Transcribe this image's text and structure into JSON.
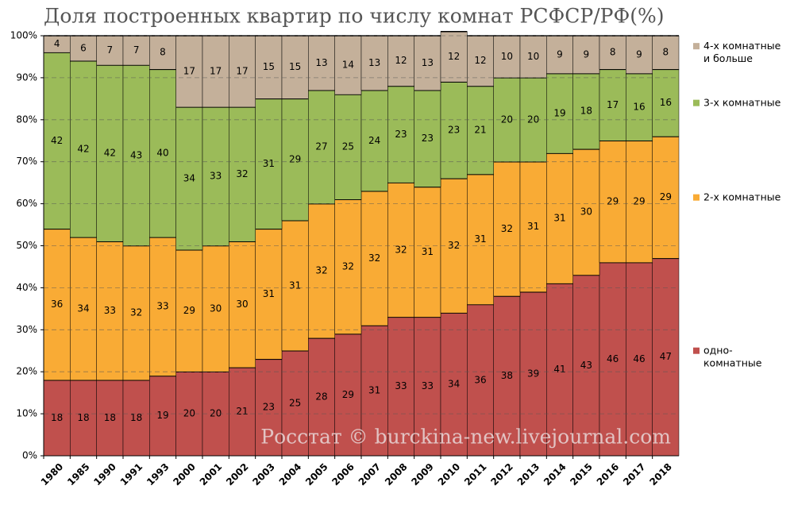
{
  "chart_data": {
    "type": "stacked_bar",
    "title": "Доля построенных квартир по числу комнат РСФСР/РФ(%)",
    "watermark": "Росстат © burckina-new.livejournal.com",
    "categories": [
      "1980",
      "1985",
      "1990",
      "1991",
      "1993",
      "2000",
      "2001",
      "2002",
      "2003",
      "2004",
      "2005",
      "2006",
      "2007",
      "2008",
      "2009",
      "2010",
      "2011",
      "2012",
      "2013",
      "2014",
      "2015",
      "2016",
      "2017",
      "2018"
    ],
    "series": [
      {
        "name": "одно-\nкомнатные",
        "color": "#c0504d",
        "values": [
          18,
          18,
          18,
          18,
          19,
          20,
          20,
          21,
          23,
          25,
          28,
          29,
          31,
          33,
          33,
          34,
          36,
          38,
          39,
          41,
          43,
          46,
          46,
          47
        ]
      },
      {
        "name": "2-х комнатные",
        "color": "#f9ab35",
        "values": [
          36,
          34,
          33,
          32,
          33,
          29,
          30,
          30,
          31,
          31,
          32,
          32,
          32,
          32,
          31,
          32,
          31,
          32,
          31,
          31,
          30,
          29,
          29,
          29
        ]
      },
      {
        "name": "3-х комнатные",
        "color": "#9bbb59",
        "values": [
          42,
          42,
          42,
          43,
          40,
          34,
          33,
          32,
          31,
          29,
          27,
          25,
          24,
          23,
          23,
          23,
          21,
          20,
          20,
          19,
          18,
          17,
          16,
          16
        ]
      },
      {
        "name": "4-х комнатные\nи больше",
        "color": "#c4b09a",
        "values": [
          4,
          6,
          7,
          7,
          8,
          17,
          17,
          17,
          15,
          15,
          13,
          14,
          13,
          12,
          13,
          12,
          12,
          10,
          10,
          9,
          9,
          8,
          9,
          8
        ]
      }
    ],
    "ylim": [
      0,
      100
    ],
    "yticks": [
      {
        "value": 0,
        "label": "0%"
      },
      {
        "value": 10,
        "label": "10%"
      },
      {
        "value": 20,
        "label": "20%"
      },
      {
        "value": 30,
        "label": "30%"
      },
      {
        "value": 40,
        "label": "40%"
      },
      {
        "value": 50,
        "label": "50%"
      },
      {
        "value": 60,
        "label": "60%"
      },
      {
        "value": 70,
        "label": "70%"
      },
      {
        "value": 80,
        "label": "80%"
      },
      {
        "value": 90,
        "label": "90%"
      },
      {
        "value": 100,
        "label": "100%"
      }
    ],
    "grid": true
  }
}
